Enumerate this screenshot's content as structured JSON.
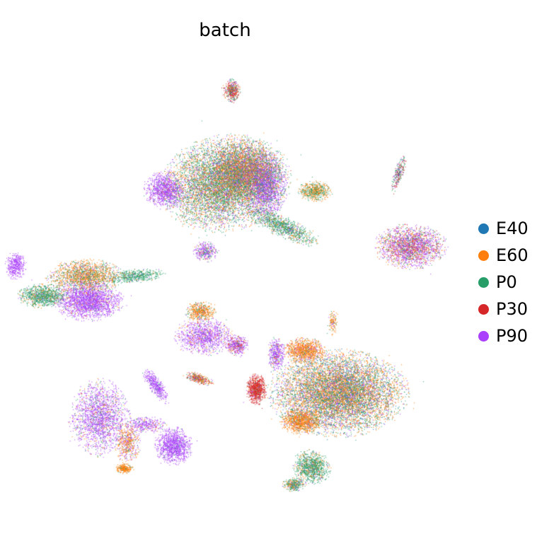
{
  "chart_data": {
    "type": "scatter",
    "title": "batch",
    "xlabel": "",
    "ylabel": "",
    "axes_visible": false,
    "grid": false,
    "legend_position": "right",
    "series": [
      {
        "name": "E40",
        "color": "#1f77b4"
      },
      {
        "name": "E60",
        "color": "#ff7f0e"
      },
      {
        "name": "P0",
        "color": "#279e68"
      },
      {
        "name": "P30",
        "color": "#d62728"
      },
      {
        "name": "P90",
        "color": "#aa40fc"
      }
    ]
  }
}
